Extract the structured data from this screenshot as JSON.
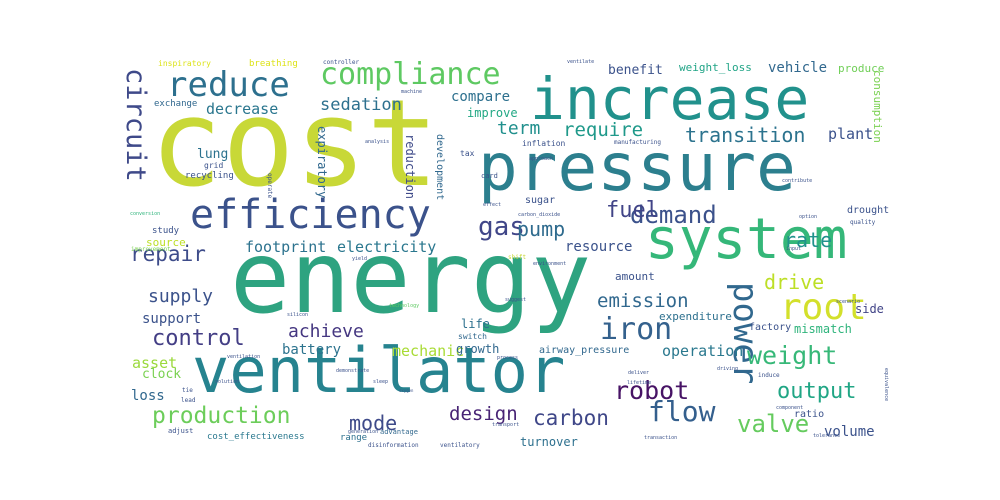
{
  "word_cloud": {
    "words": [
      {
        "id": "cost",
        "text": "cost",
        "color": "#c8d837"
      },
      {
        "id": "energy",
        "text": "energy",
        "color": "#2ea380"
      },
      {
        "id": "increase",
        "text": "increase",
        "color": "#21918c"
      },
      {
        "id": "pressure",
        "text": "pressure",
        "color": "#2c7f8e"
      },
      {
        "id": "system",
        "text": "system",
        "color": "#35b779"
      },
      {
        "id": "ventilator",
        "text": "ventilator",
        "color": "#26838f"
      },
      {
        "id": "efficiency",
        "text": "efficiency",
        "color": "#3b528b"
      },
      {
        "id": "reduce",
        "text": "reduce",
        "color": "#2d708e"
      },
      {
        "id": "compliance",
        "text": "compliance",
        "color": "#5ec962"
      },
      {
        "id": "root",
        "text": "root",
        "color": "#d3e02b"
      },
      {
        "id": "power",
        "text": "power",
        "color": "#31688e"
      },
      {
        "id": "circuit",
        "text": "circuit",
        "color": "#3e4989"
      },
      {
        "id": "iron",
        "text": "iron",
        "color": "#34618d"
      },
      {
        "id": "demand",
        "text": "demand",
        "color": "#3b518b"
      },
      {
        "id": "weight",
        "text": "weight",
        "color": "#37b878"
      },
      {
        "id": "valve",
        "text": "valve",
        "color": "#65cb5e"
      },
      {
        "id": "production",
        "text": "production",
        "color": "#6ccd5a"
      },
      {
        "id": "flow",
        "text": "flow",
        "color": "#345f8d"
      },
      {
        "id": "output",
        "text": "output",
        "color": "#21a685"
      },
      {
        "id": "robot",
        "text": "robot",
        "color": "#471365"
      },
      {
        "id": "control",
        "text": "control",
        "color": "#433e85"
      },
      {
        "id": "gas",
        "text": "gas",
        "color": "#404688"
      },
      {
        "id": "fuel",
        "text": "fuel",
        "color": "#414487"
      },
      {
        "id": "pump",
        "text": "pump",
        "color": "#2f6b8e"
      },
      {
        "id": "repair",
        "text": "repair",
        "color": "#3e4c8a"
      },
      {
        "id": "transition",
        "text": "transition",
        "color": "#2c738e"
      },
      {
        "id": "require",
        "text": "require",
        "color": "#1f998a"
      },
      {
        "id": "term",
        "text": "term",
        "color": "#21908d"
      },
      {
        "id": "sedation",
        "text": "sedation",
        "color": "#2d708e"
      },
      {
        "id": "rate",
        "text": "rate",
        "color": "#20928c"
      },
      {
        "id": "drive",
        "text": "drive",
        "color": "#bddf26"
      },
      {
        "id": "mode",
        "text": "mode",
        "color": "#3e4a89"
      },
      {
        "id": "design",
        "text": "design",
        "color": "#482475"
      },
      {
        "id": "carbon",
        "text": "carbon",
        "color": "#3f4788"
      },
      {
        "id": "supply",
        "text": "supply",
        "color": "#3b528b"
      },
      {
        "id": "achieve",
        "text": "achieve",
        "color": "#453781"
      },
      {
        "id": "emission",
        "text": "emission",
        "color": "#31688e"
      },
      {
        "id": "mechanic",
        "text": "mechanic",
        "color": "#a8db34"
      },
      {
        "id": "operation",
        "text": "operation",
        "color": "#2a788e"
      },
      {
        "id": "decrease",
        "text": "decrease",
        "color": "#2a768e"
      },
      {
        "id": "compare",
        "text": "compare",
        "color": "#2d708e"
      },
      {
        "id": "improve",
        "text": "improve",
        "color": "#22a884"
      },
      {
        "id": "benefit",
        "text": "benefit",
        "color": "#3b528b"
      },
      {
        "id": "vehicle",
        "text": "vehicle",
        "color": "#31688e"
      },
      {
        "id": "weight_loss",
        "text": "weight_loss",
        "color": "#20a486"
      },
      {
        "id": "produce",
        "text": "produce",
        "color": "#70cf57"
      },
      {
        "id": "plant",
        "text": "plant",
        "color": "#3b528b"
      },
      {
        "id": "consumption",
        "text": "consumption",
        "color": "#7ad151"
      },
      {
        "id": "footprint",
        "text": "footprint",
        "color": "#2c728e"
      },
      {
        "id": "electricity",
        "text": "electricity",
        "color": "#2a778e"
      },
      {
        "id": "resource",
        "text": "resource",
        "color": "#3b528b"
      },
      {
        "id": "lung",
        "text": "lung",
        "color": "#2c728e"
      },
      {
        "id": "support",
        "text": "support",
        "color": "#3b528b"
      },
      {
        "id": "battery",
        "text": "battery",
        "color": "#2c738e"
      },
      {
        "id": "asset",
        "text": "asset",
        "color": "#9bd93c"
      },
      {
        "id": "clock",
        "text": "clock",
        "color": "#7ad151"
      },
      {
        "id": "loss",
        "text": "loss",
        "color": "#31688e"
      },
      {
        "id": "side",
        "text": "side",
        "color": "#414487"
      },
      {
        "id": "mismatch",
        "text": "mismatch",
        "color": "#2fb47c"
      },
      {
        "id": "factory",
        "text": "factory",
        "color": "#3b528b"
      },
      {
        "id": "volume",
        "text": "volume",
        "color": "#3b528b"
      },
      {
        "id": "amount",
        "text": "amount",
        "color": "#3b528b"
      },
      {
        "id": "expenditure",
        "text": "expenditure",
        "color": "#2d708e"
      },
      {
        "id": "life",
        "text": "life",
        "color": "#2d708e"
      },
      {
        "id": "turnover",
        "text": "turnover",
        "color": "#2d708e"
      },
      {
        "id": "airway_pressure",
        "text": "airway_pressure",
        "color": "#31688e"
      },
      {
        "id": "growth",
        "text": "growth",
        "color": "#31688e"
      },
      {
        "id": "cost_effectiveness",
        "text": "cost_effectiveness",
        "color": "#2a788e"
      },
      {
        "id": "expiratory",
        "text": "expiratory",
        "color": "#31688e"
      },
      {
        "id": "reduction",
        "text": "reduction",
        "color": "#3e4a89"
      },
      {
        "id": "development",
        "text": "development",
        "color": "#31688e"
      },
      {
        "id": "source",
        "text": "source",
        "color": "#bddf26"
      },
      {
        "id": "study",
        "text": "study",
        "color": "#3b528b"
      },
      {
        "id": "sugar",
        "text": "sugar",
        "color": "#3b528b"
      },
      {
        "id": "exchange",
        "text": "exchange",
        "color": "#31688e"
      },
      {
        "id": "inspiratory",
        "text": "inspiratory",
        "color": "#dde318"
      },
      {
        "id": "breathing",
        "text": "breathing",
        "color": "#dde318"
      },
      {
        "id": "recycling",
        "text": "recycling",
        "color": "#3b528b"
      },
      {
        "id": "grid",
        "text": "grid",
        "color": "#3b528b"
      },
      {
        "id": "inflation",
        "text": "inflation",
        "color": "#3b528b"
      },
      {
        "id": "range",
        "text": "range",
        "color": "#2d708e"
      },
      {
        "id": "advantage",
        "text": "advantage",
        "color": "#31688e"
      },
      {
        "id": "ratio",
        "text": "ratio",
        "color": "#3b528b"
      },
      {
        "id": "ventilate",
        "text": "ventilate",
        "color": "#3b528b"
      },
      {
        "id": "drought",
        "text": "drought",
        "color": "#3b528b"
      },
      {
        "id": "quality",
        "text": "quality",
        "color": "#3b528b"
      },
      {
        "id": "tax",
        "text": "tax",
        "color": "#3b528b"
      },
      {
        "id": "switch",
        "text": "switch",
        "color": "#31688e"
      },
      {
        "id": "tie",
        "text": "tie",
        "color": "#3b528b"
      },
      {
        "id": "lead",
        "text": "lead",
        "color": "#3b528b"
      },
      {
        "id": "adjust",
        "text": "adjust",
        "color": "#3b528b"
      },
      {
        "id": "disinformation",
        "text": "disinformation",
        "color": "#3b528b"
      },
      {
        "id": "ventilatory",
        "text": "ventilatory",
        "color": "#3b528b"
      },
      {
        "id": "improvement",
        "text": "improvement",
        "color": "#7ad151"
      },
      {
        "id": "conversion",
        "text": "conversion",
        "color": "#2fb47c"
      },
      {
        "id": "controller",
        "text": "controller",
        "color": "#3b528b"
      },
      {
        "id": "analysis",
        "text": "analysis",
        "color": "#3b528b"
      },
      {
        "id": "manufacturing",
        "text": "manufacturing",
        "color": "#3b528b"
      },
      {
        "id": "contribute",
        "text": "contribute",
        "color": "#3b528b"
      },
      {
        "id": "approach",
        "text": "approach",
        "color": "#3b528b"
      },
      {
        "id": "carbon_dioxide",
        "text": "carbon_dioxide",
        "color": "#3b528b"
      },
      {
        "id": "option",
        "text": "option",
        "color": "#3b528b"
      },
      {
        "id": "effect",
        "text": "effect",
        "color": "#3b528b"
      },
      {
        "id": "transport",
        "text": "transport",
        "color": "#3b528b"
      },
      {
        "id": "suggest",
        "text": "suggest",
        "color": "#3b528b"
      },
      {
        "id": "technology",
        "text": "technology",
        "color": "#5ec962"
      },
      {
        "id": "process",
        "text": "process",
        "color": "#3b528b"
      },
      {
        "id": "lifetime",
        "text": "lifetime",
        "color": "#3b528b"
      },
      {
        "id": "deliver",
        "text": "deliver",
        "color": "#3b528b"
      },
      {
        "id": "driving",
        "text": "driving",
        "color": "#3b528b"
      },
      {
        "id": "induce",
        "text": "induce",
        "color": "#3b528b"
      },
      {
        "id": "component",
        "text": "component",
        "color": "#3b528b"
      },
      {
        "id": "tolerance",
        "text": "tolerance",
        "color": "#3b528b"
      },
      {
        "id": "transaction",
        "text": "transaction",
        "color": "#3b528b"
      },
      {
        "id": "generation",
        "text": "generation",
        "color": "#3b528b"
      },
      {
        "id": "silicon",
        "text": "silicon",
        "color": "#3b528b"
      },
      {
        "id": "solution",
        "text": "solution",
        "color": "#3b528b"
      },
      {
        "id": "oxygen",
        "text": "oxygen",
        "color": "#3b528b"
      },
      {
        "id": "sleep",
        "text": "sleep",
        "color": "#3b528b"
      },
      {
        "id": "demonstrate",
        "text": "demonstrate",
        "color": "#3b528b"
      },
      {
        "id": "shift",
        "text": "shift",
        "color": "#c8d837"
      },
      {
        "id": "yield",
        "text": "yield",
        "color": "#3b528b"
      },
      {
        "id": "environment",
        "text": "environment",
        "color": "#3b528b"
      },
      {
        "id": "card",
        "text": "card",
        "color": "#3b528b"
      },
      {
        "id": "machine",
        "text": "machine",
        "color": "#3b528b"
      },
      {
        "id": "equivalence",
        "text": "equivalence",
        "color": "#3b528b"
      },
      {
        "id": "input",
        "text": "input",
        "color": "#3b528b"
      },
      {
        "id": "operate",
        "text": "operate",
        "color": "#3b528b"
      },
      {
        "id": "ventilation",
        "text": "ventilation",
        "color": "#3b528b"
      },
      {
        "id": "scenario",
        "text": "scenario",
        "color": "#3b528b"
      }
    ]
  }
}
